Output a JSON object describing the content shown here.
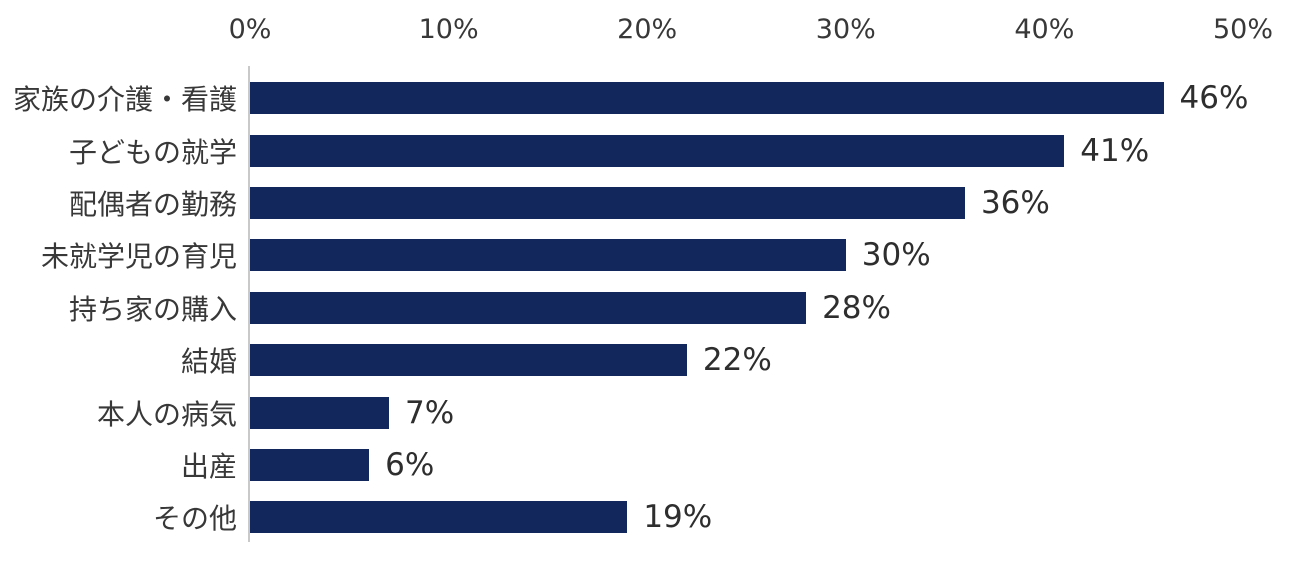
{
  "chart_data": {
    "type": "bar",
    "orientation": "horizontal",
    "title": "",
    "categories": [
      "家族の介護・看護",
      "子どもの就学",
      "配偶者の勤務",
      "未就学児の育児",
      "持ち家の購入",
      "結婚",
      "本人の病気",
      "出産",
      "その他"
    ],
    "values": [
      46,
      41,
      36,
      30,
      28,
      22,
      7,
      6,
      19
    ],
    "value_labels": [
      "46%",
      "41%",
      "36%",
      "30%",
      "28%",
      "22%",
      "7%",
      "6%",
      "19%"
    ],
    "x_ticks": [
      "0%",
      "10%",
      "20%",
      "30%",
      "40%",
      "50%"
    ],
    "xlim": [
      0,
      50
    ],
    "xlabel": "",
    "ylabel": "",
    "axis_position": "top",
    "grid": false,
    "legend": false,
    "bar_color": "#12285c",
    "axis_line_color": "#c9c9c9",
    "text_color": "#383838",
    "background_color": "#ffffff"
  }
}
